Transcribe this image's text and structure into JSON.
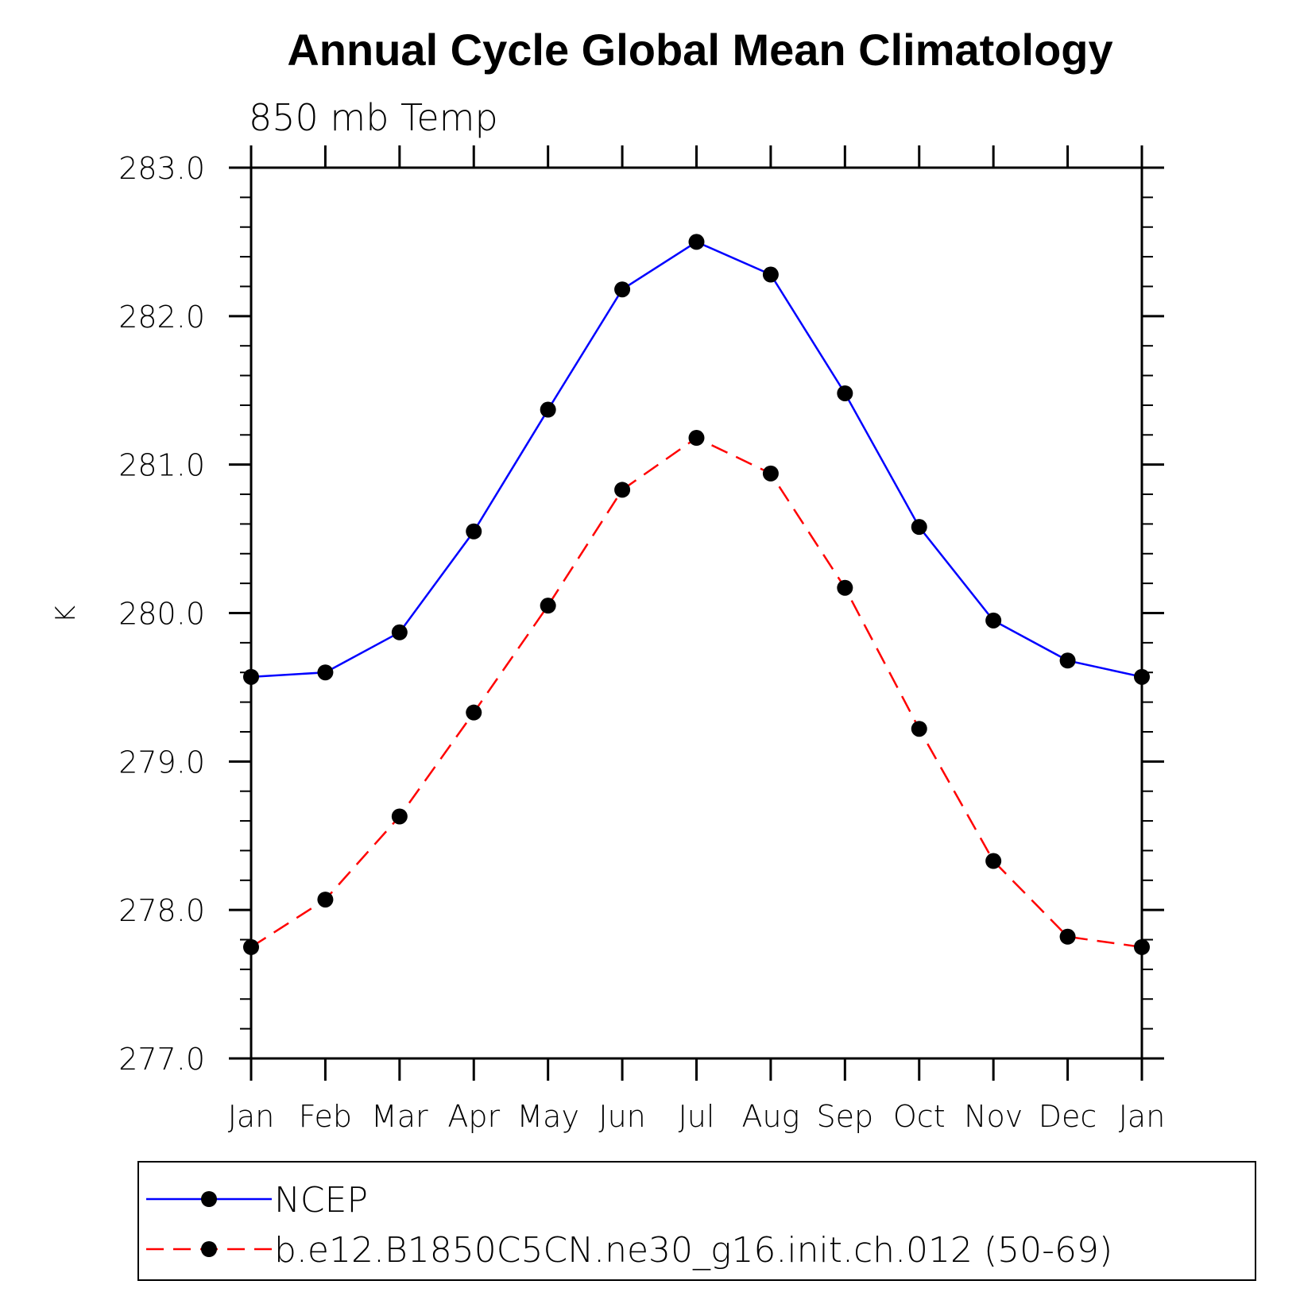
{
  "chart_data": {
    "type": "line",
    "title": "Annual Cycle Global Mean Climatology",
    "subtitle": "850 mb Temp",
    "ylabel": "K",
    "xlabel": "",
    "categories": [
      "Jan",
      "Feb",
      "Mar",
      "Apr",
      "May",
      "Jun",
      "Jul",
      "Aug",
      "Sep",
      "Oct",
      "Nov",
      "Dec",
      "Jan"
    ],
    "ylim": [
      277.0,
      283.0
    ],
    "yticks": [
      "277.0",
      "278.0",
      "279.0",
      "280.0",
      "281.0",
      "282.0",
      "283.0"
    ],
    "grid": false,
    "legend_placement": "bottom",
    "series": [
      {
        "name": "NCEP",
        "color": "#0000ff",
        "line_style": "solid",
        "marker": "filled-circle",
        "values": [
          279.57,
          279.6,
          279.87,
          280.55,
          281.37,
          282.18,
          282.5,
          282.28,
          281.48,
          280.58,
          279.95,
          279.68,
          279.57
        ]
      },
      {
        "name": "b.e12.B1850C5CN.ne30_g16.init.ch.012 (50-69)",
        "color": "#ff0000",
        "line_style": "dashed",
        "marker": "filled-circle",
        "values": [
          277.75,
          278.07,
          278.63,
          279.33,
          280.05,
          280.83,
          281.18,
          280.94,
          280.17,
          279.22,
          278.33,
          277.82,
          277.75
        ]
      }
    ]
  }
}
